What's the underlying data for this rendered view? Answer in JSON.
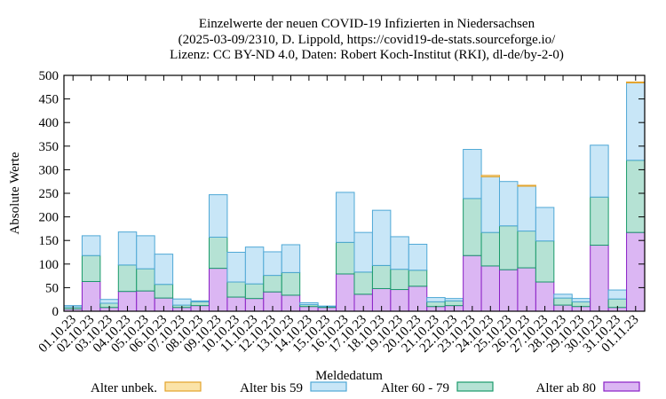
{
  "chart_data": {
    "type": "bar",
    "stacked": true,
    "title": [
      "Einzelwerte der neuen COVID-19 Infizierten in Niedersachsen",
      "(2025-03-09/2310, D. Lippold, https://covid19-de-stats.sourceforge.io/",
      "Lizenz: CC BY-ND 4.0, Daten: Robert Koch-Institut (RKI), dl-de/by-2-0)"
    ],
    "xlabel": "Meldedatum",
    "ylabel": "Absolute Werte",
    "ylim": [
      0,
      500
    ],
    "yticks": [
      0,
      50,
      100,
      150,
      200,
      250,
      300,
      350,
      400,
      450,
      500
    ],
    "categories": [
      "01.10.23",
      "02.10.23",
      "03.10.23",
      "04.10.23",
      "05.10.23",
      "06.10.23",
      "07.10.23",
      "08.10.23",
      "09.10.23",
      "10.10.23",
      "11.10.23",
      "12.10.23",
      "13.10.23",
      "14.10.23",
      "15.10.23",
      "16.10.23",
      "17.10.23",
      "18.10.23",
      "19.10.23",
      "20.10.23",
      "21.10.23",
      "22.10.23",
      "23.10.23",
      "24.10.23",
      "25.10.23",
      "26.10.23",
      "27.10.23",
      "28.10.23",
      "29.10.23",
      "30.10.23",
      "31.10.23",
      "01.11.23"
    ],
    "series": [
      {
        "name": "Alter ab 80",
        "fill": "#dbb6f3",
        "stroke": "#8a1fc6",
        "values": [
          5,
          63,
          8,
          42,
          43,
          28,
          8,
          12,
          91,
          30,
          27,
          41,
          34,
          10,
          8,
          79,
          36,
          48,
          46,
          53,
          10,
          12,
          118,
          96,
          88,
          92,
          62,
          13,
          10,
          140,
          8,
          167
        ]
      },
      {
        "name": "Alter 60 - 79",
        "fill": "#b5e2d4",
        "stroke": "#1a9a6b",
        "values": [
          4,
          55,
          9,
          56,
          47,
          29,
          5,
          8,
          66,
          32,
          31,
          35,
          48,
          4,
          2,
          67,
          47,
          49,
          43,
          34,
          10,
          10,
          121,
          71,
          93,
          78,
          87,
          15,
          10,
          102,
          18,
          153
        ]
      },
      {
        "name": "Alter bis 59",
        "fill": "#c8e6f7",
        "stroke": "#4fa8d6",
        "values": [
          3,
          42,
          8,
          70,
          70,
          64,
          13,
          2,
          90,
          63,
          78,
          50,
          59,
          4,
          1,
          106,
          84,
          117,
          69,
          55,
          9,
          5,
          104,
          118,
          94,
          95,
          71,
          8,
          7,
          110,
          19,
          164
        ]
      },
      {
        "name": "Alter unbek.",
        "fill": "#fbe3a8",
        "stroke": "#e3a32b",
        "values": [
          0,
          0,
          0,
          0,
          0,
          0,
          0,
          0,
          0,
          0,
          0,
          0,
          0,
          0,
          0,
          0,
          0,
          0,
          0,
          0,
          0,
          0,
          0,
          3,
          0,
          2,
          0,
          0,
          0,
          0,
          0,
          2
        ]
      }
    ],
    "legend": {
      "placement": "bottom",
      "entries": [
        "Alter unbek.",
        "Alter bis 59",
        "Alter 60 - 79",
        "Alter ab 80"
      ]
    },
    "grid": false
  }
}
